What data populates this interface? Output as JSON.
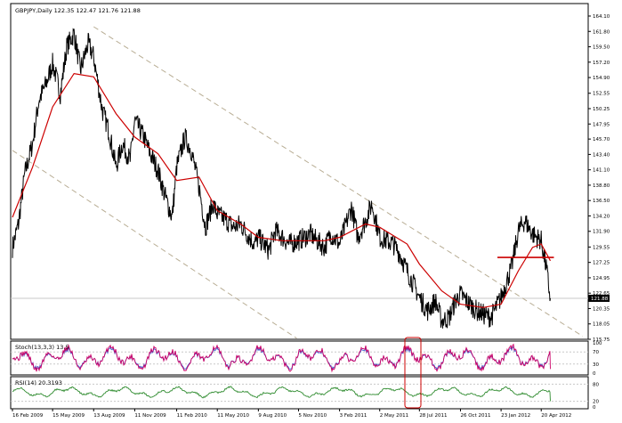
{
  "header": {
    "title": "GBPJPY,Daily  122.35 122.47 121.76 121.88"
  },
  "colors": {
    "price_bars": "#000000",
    "moving_average": "#cc0000",
    "trend_channel": "#b8ad94",
    "stoch_main": "#cc0066",
    "stoch_signal": "#3355cc",
    "rsi_line": "#2e8b2e",
    "highlight_box": "#cc0000",
    "current_price_box": "#000000",
    "level_lines": "#c8c8c8"
  },
  "chart_data": [
    {
      "type": "line",
      "name": "GBPJPY Daily price",
      "title": "GBPJPY,Daily",
      "ohlc_last": {
        "open": 122.35,
        "high": 122.47,
        "low": 121.76,
        "close": 121.88
      },
      "x_ticks": [
        "16 Feb 2009",
        "15 May 2009",
        "13 Aug 2009",
        "11 Nov 2009",
        "11 Feb 2010",
        "11 May 2010",
        "9 Aug 2010",
        "5 Nov 2010",
        "3 Feb 2011",
        "2 May 2011",
        "28 Jul 2011",
        "26 Oct 2011",
        "23 Jan 2012",
        "20 Apr 2012"
      ],
      "y_ticks": [
        164.1,
        161.8,
        159.5,
        157.2,
        154.9,
        152.55,
        150.25,
        147.95,
        145.7,
        143.4,
        141.1,
        138.8,
        136.5,
        134.2,
        131.9,
        129.55,
        127.25,
        124.95,
        122.65,
        120.35,
        118.05,
        115.75
      ],
      "ylim": [
        115.75,
        164.1
      ],
      "current_price_label": "121.88",
      "series": [
        {
          "name": "price",
          "x": [
            "2009-02-16",
            "2009-03-01",
            "2009-03-15",
            "2009-04-01",
            "2009-04-15",
            "2009-05-01",
            "2009-05-15",
            "2009-06-01",
            "2009-06-15",
            "2009-07-01",
            "2009-07-15",
            "2009-08-01",
            "2009-08-13",
            "2009-09-01",
            "2009-09-15",
            "2009-10-01",
            "2009-10-15",
            "2009-11-01",
            "2009-11-11",
            "2009-12-01",
            "2009-12-15",
            "2010-01-01",
            "2010-01-15",
            "2010-02-01",
            "2010-02-11",
            "2010-03-01",
            "2010-03-15",
            "2010-04-01",
            "2010-04-15",
            "2010-05-01",
            "2010-05-11",
            "2010-06-01",
            "2010-06-15",
            "2010-07-01",
            "2010-07-15",
            "2010-08-01",
            "2010-08-09",
            "2010-09-01",
            "2010-09-15",
            "2010-10-01",
            "2010-10-15",
            "2010-11-05",
            "2010-12-01",
            "2010-12-15",
            "2011-01-01",
            "2011-01-15",
            "2011-02-03",
            "2011-02-15",
            "2011-03-01",
            "2011-03-15",
            "2011-04-01",
            "2011-04-15",
            "2011-05-02",
            "2011-06-01",
            "2011-06-15",
            "2011-07-01",
            "2011-07-15",
            "2011-07-28",
            "2011-08-15",
            "2011-09-01",
            "2011-09-15",
            "2011-10-01",
            "2011-10-15",
            "2011-10-26",
            "2011-11-15",
            "2011-12-01",
            "2011-12-15",
            "2012-01-01",
            "2012-01-23",
            "2012-02-15",
            "2012-03-01",
            "2012-03-15",
            "2012-04-01",
            "2012-04-20",
            "2012-05-01",
            "2012-05-10"
          ],
          "values": [
            129.5,
            133.0,
            140.5,
            145.0,
            151.5,
            154.0,
            157.0,
            152.5,
            159.5,
            161.5,
            156.0,
            160.0,
            158.0,
            150.0,
            147.0,
            141.5,
            145.0,
            142.5,
            148.5,
            146.0,
            143.5,
            141.0,
            137.5,
            134.0,
            141.5,
            146.0,
            144.0,
            138.5,
            132.5,
            136.0,
            134.5,
            133.5,
            132.5,
            133.0,
            131.5,
            130.0,
            131.0,
            129.0,
            132.0,
            131.0,
            130.0,
            130.5,
            131.5,
            130.5,
            129.5,
            131.5,
            130.0,
            132.5,
            135.5,
            131.0,
            133.5,
            136.0,
            131.0,
            130.0,
            128.5,
            126.0,
            124.0,
            122.0,
            120.0,
            121.5,
            118.5,
            119.0,
            121.5,
            122.5,
            121.0,
            120.0,
            119.5,
            119.0,
            122.0,
            126.5,
            132.0,
            133.5,
            131.5,
            130.5,
            126.5,
            121.88
          ]
        },
        {
          "name": "moving average",
          "x": [
            "2009-02-16",
            "2009-04-01",
            "2009-05-15",
            "2009-07-01",
            "2009-08-13",
            "2009-10-01",
            "2009-11-11",
            "2010-01-01",
            "2010-02-11",
            "2010-04-01",
            "2010-05-11",
            "2010-07-01",
            "2010-08-09",
            "2010-10-01",
            "2010-11-05",
            "2011-01-01",
            "2011-02-03",
            "2011-04-01",
            "2011-05-02",
            "2011-07-01",
            "2011-07-28",
            "2011-09-15",
            "2011-10-26",
            "2011-12-15",
            "2012-01-23",
            "2012-03-01",
            "2012-04-01",
            "2012-04-20",
            "2012-05-10"
          ],
          "values": [
            134.0,
            141.5,
            150.5,
            155.5,
            155.0,
            149.5,
            146.0,
            143.5,
            139.5,
            140.0,
            135.0,
            133.0,
            131.0,
            130.5,
            130.5,
            130.5,
            131.0,
            133.0,
            132.5,
            130.0,
            127.0,
            123.0,
            121.0,
            120.5,
            121.0,
            126.0,
            129.5,
            130.0,
            127.5
          ]
        }
      ],
      "annotations": {
        "support_line_level": 128.0
      }
    },
    {
      "type": "line",
      "name": "Stochastic oscillator",
      "title": "Stoch(13,3,3) 13.5",
      "y_ticks": [
        100,
        70,
        30,
        0
      ],
      "ylim": [
        0,
        100
      ],
      "levels": [
        70,
        30
      ]
    },
    {
      "type": "line",
      "name": "RSI",
      "title": "RSI(14) 20.3193",
      "y_ticks": [
        80,
        20,
        0
      ],
      "ylim": [
        0,
        100
      ],
      "levels": [
        80,
        20
      ],
      "last_value": 20.3193
    }
  ]
}
